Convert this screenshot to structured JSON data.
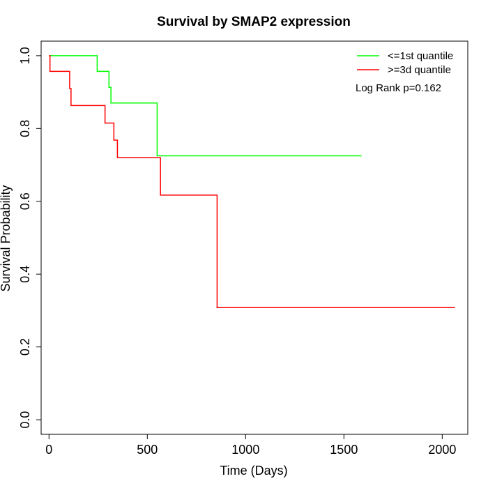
{
  "chart_data": {
    "type": "line",
    "title": "Survival by SMAP2 expression",
    "xlabel": "Time (Days)",
    "ylabel": "Survival Probability",
    "xlim": [
      -40,
      2130
    ],
    "ylim": [
      -0.04,
      1.04
    ],
    "x_ticks": [
      0,
      500,
      1000,
      1500,
      2000
    ],
    "y_ticks": [
      0.0,
      0.2,
      0.4,
      0.6,
      0.8,
      1.0
    ],
    "x_tick_labels": [
      "0",
      "500",
      "1000",
      "1500",
      "2000"
    ],
    "y_tick_labels": [
      "0.0",
      "0.2",
      "0.4",
      "0.6",
      "0.8",
      "1.0"
    ],
    "grid": false,
    "legend_position": "top-right",
    "annotation": "Log Rank p=0.162",
    "series": [
      {
        "name": "<=1st quantile",
        "color": "#00ff00",
        "step": true,
        "x": [
          0,
          245,
          305,
          315,
          550,
          1590
        ],
        "y": [
          1.0,
          0.957,
          0.913,
          0.87,
          0.725,
          0.725
        ]
      },
      {
        "name": ">=3d quantile",
        "color": "#ff0000",
        "step": true,
        "x": [
          0,
          5,
          105,
          112,
          285,
          330,
          348,
          567,
          855,
          2065
        ],
        "y": [
          1.0,
          0.957,
          0.91,
          0.863,
          0.815,
          0.768,
          0.72,
          0.617,
          0.308,
          0.308
        ]
      }
    ]
  }
}
